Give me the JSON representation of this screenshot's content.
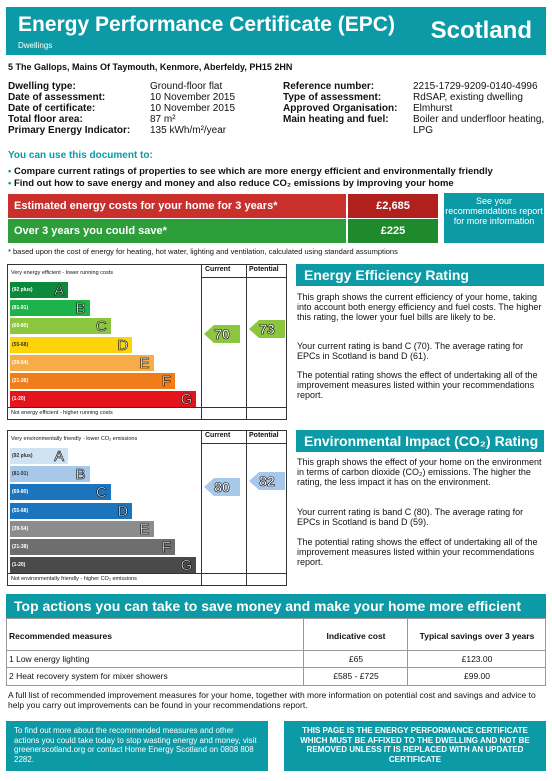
{
  "header": {
    "title": "Energy Performance Certificate (EPC)",
    "subtitle": "Dwellings",
    "country": "Scotland"
  },
  "address": "5 The Gallops, Mains Of Taymouth, Kenmore, Aberfeldy, PH15 2HN",
  "left_props": [
    {
      "label": "Dwelling type:",
      "value": "Ground-floor flat"
    },
    {
      "label": "Date of assessment:",
      "value": "10 November 2015"
    },
    {
      "label": "Date of certificate:",
      "value": "10 November 2015"
    },
    {
      "label": "Total floor area:",
      "value": "87 m²"
    },
    {
      "label": "Primary Energy Indicator:",
      "value": "135 kWh/m²/year"
    }
  ],
  "right_props": [
    {
      "label": "Reference number:",
      "value": "2215-1729-9209-0140-4996"
    },
    {
      "label": "Type of assessment:",
      "value": "RdSAP, existing dwelling"
    },
    {
      "label": "Approved Organisation:",
      "value": "Elmhurst"
    },
    {
      "label": "Main heating and fuel:",
      "value": "Boiler and underfloor heating,"
    },
    {
      "label": "",
      "value": "LPG"
    }
  ],
  "use_heading": "You can use this document to:",
  "bullets": [
    "Compare current ratings of properties to see which are more energy efficient and environmentally friendly",
    "Find out how to save energy and money and also reduce CO₂ emissions by improving your home"
  ],
  "costs": {
    "row1_label": "Estimated energy costs for your home for 3 years*",
    "row1_value": "£2,685",
    "row2_label": "Over 3 years you could save*",
    "row2_value": "£225",
    "see_box": "See your recommendations report for more information",
    "note": "* based upon the cost of energy for heating, hot water, lighting and ventilation, calculated using standard assumptions"
  },
  "ee_chart": {
    "top": "Very energy efficient - lower running costs",
    "bottom": "Not energy efficient - higher running costs",
    "col_current": "Current",
    "col_potential": "Potential",
    "current": "70",
    "potential": "73",
    "bands": [
      {
        "range": "(92 plus)",
        "letter": "A",
        "color": "#0a8a3a"
      },
      {
        "range": "(81-91)",
        "letter": "B",
        "color": "#1db34a"
      },
      {
        "range": "(69-80)",
        "letter": "C",
        "color": "#8cc63e"
      },
      {
        "range": "(55-68)",
        "letter": "D",
        "color": "#fdd40a"
      },
      {
        "range": "(39-54)",
        "letter": "E",
        "color": "#f7ac4a"
      },
      {
        "range": "(21-38)",
        "letter": "F",
        "color": "#ef7d1a"
      },
      {
        "range": "(1-20)",
        "letter": "G",
        "color": "#e3141c"
      }
    ]
  },
  "ei_chart": {
    "top": "Very environmentally friendly - lower CO₂ emissions",
    "bottom": "Not environmentally friendly - higher CO₂ emissions",
    "col_current": "Current",
    "col_potential": "Potential",
    "current": "80",
    "potential": "82",
    "bands": [
      {
        "range": "(92 plus)",
        "letter": "A",
        "color": "#d0e3f3"
      },
      {
        "range": "(81-91)",
        "letter": "B",
        "color": "#a8c8ea"
      },
      {
        "range": "(69-80)",
        "letter": "C",
        "color": "#1c75bc"
      },
      {
        "range": "(55-68)",
        "letter": "D",
        "color": "#1c75bc"
      },
      {
        "range": "(39-54)",
        "letter": "E",
        "color": "#8c8c8c"
      },
      {
        "range": "(21-38)",
        "letter": "F",
        "color": "#6e6e6e"
      },
      {
        "range": "(1-20)",
        "letter": "G",
        "color": "#4a4a4a"
      }
    ]
  },
  "ee_text": {
    "title": "Energy Efficiency Rating",
    "p1": "This graph shows the current efficiency of your home, taking into account both energy efficiency and fuel costs. The higher this rating, the lower your fuel bills are likely to be.",
    "p2": "Your current rating is band C (70). The average rating for EPCs in Scotland is band D (61).",
    "p3": "The potential rating shows the effect of undertaking all of the improvement measures listed within your recommendations report."
  },
  "ei_text": {
    "title": "Environmental Impact (CO₂) Rating",
    "p1": "This graph shows the effect of your home on the environment in terms of carbon dioxide (CO₂) emissions. The higher the rating, the less impact it has on the environment.",
    "p2": "Your current rating is band C (80). The average rating for EPCs in Scotland is band D (59).",
    "p3": "The potential rating shows the effect of undertaking all of the improvement measures listed within your recommendations report."
  },
  "actions": {
    "title": "Top actions you can take to save money and make your home more efficient",
    "col1": "Recommended measures",
    "col2": "Indicative cost",
    "col3": "Typical savings over 3 years",
    "rows": [
      {
        "measure": "1 Low energy lighting",
        "cost": "£65",
        "saving": "£123.00"
      },
      {
        "measure": "2 Heat recovery system for mixer showers",
        "cost": "£585 - £725",
        "saving": "£99.00"
      }
    ]
  },
  "footer": {
    "note": "A full list of recommended improvement measures for your home, together with more information on potential cost and savings and advice to help you carry out improvements can be found in your recommendations report.",
    "box1": "To find out more about the recommended measures and other actions you could take today to stop wasting energy and money, visit greenerscotland.org or contact Home Energy Scotland on 0808 808 2282.",
    "box2": "THIS PAGE IS THE ENERGY PERFORMANCE CERTIFICATE WHICH MUST BE AFFIXED TO THE DWELLING AND NOT BE REMOVED UNLESS IT IS REPLACED WITH AN UPDATED CERTIFICATE"
  }
}
